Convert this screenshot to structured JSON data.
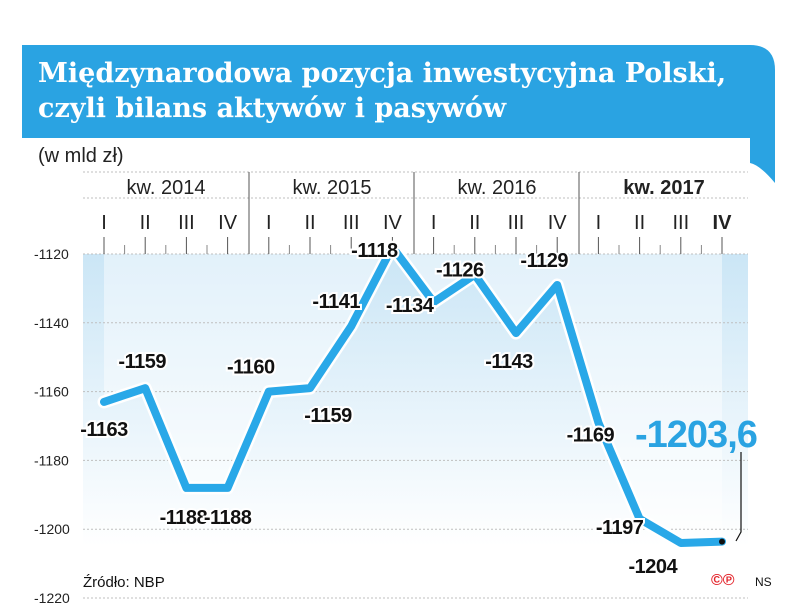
{
  "chart_data": {
    "type": "line",
    "title": "Międzynarodowa pozycja inwestycyjna Polski, czyli bilans aktywów i pasywów",
    "title_lines": [
      "Międzynarodowa pozycja inwestycyjna Polski,",
      "czyli bilans aktywów i pasywów"
    ],
    "ylabel": "(w mld zł)",
    "ylim": [
      -1220,
      -1120
    ],
    "yticks": [
      -1120,
      -1140,
      -1160,
      -1180,
      -1200,
      -1220
    ],
    "ytick_labels": [
      "-1120",
      "-1140",
      "-1160",
      "-1180",
      "-1200",
      "-1220"
    ],
    "years": [
      "kw. 2014",
      "kw. 2015",
      "kw. 2016",
      "kw. 2017"
    ],
    "quarters": [
      "I",
      "II",
      "III",
      "IV",
      "I",
      "II",
      "III",
      "IV",
      "I",
      "II",
      "III",
      "IV",
      "I",
      "II",
      "III",
      "IV"
    ],
    "values": [
      -1163,
      -1159,
      -1188,
      -1188,
      -1160,
      -1159,
      -1141,
      -1118,
      -1134,
      -1126,
      -1143,
      -1129,
      -1169,
      -1197,
      -1204,
      -1203.6
    ],
    "value_labels": [
      "-1163",
      "-1159",
      "-1188",
      "-1188",
      "-1160",
      "-1159",
      "-1141",
      "-1118",
      "-1134",
      "-1126",
      "-1143",
      "-1129",
      "-1169",
      "-1197",
      "-1204",
      "-1203,6"
    ],
    "highlight_label": "-1203,6",
    "source": "Źródło: NBP",
    "credit_logo": "©℗",
    "credit_author": "NS"
  },
  "colors": {
    "accent": "#2aa3e2",
    "line": "#29a8e8",
    "line_outline": "#ffffff",
    "area_top": "#cbe6f6",
    "area_bottom": "#ffffff",
    "grid": "#bfbfbf",
    "text": "#111111"
  }
}
